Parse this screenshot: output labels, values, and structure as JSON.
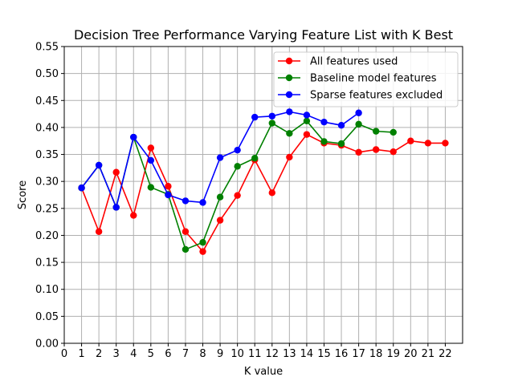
{
  "chart_data": {
    "type": "line",
    "title": "Decision Tree Performance Varying Feature List with K Best",
    "xlabel": "K value",
    "ylabel": "Score",
    "xlim": [
      0,
      23
    ],
    "ylim": [
      0,
      0.55
    ],
    "xticks": [
      0,
      1,
      2,
      3,
      4,
      5,
      6,
      7,
      8,
      9,
      10,
      11,
      12,
      13,
      14,
      15,
      16,
      17,
      18,
      19,
      20,
      21,
      22
    ],
    "yticks": [
      "0.00",
      "0.05",
      "0.10",
      "0.15",
      "0.20",
      "0.25",
      "0.30",
      "0.35",
      "0.40",
      "0.45",
      "0.50",
      "0.55"
    ],
    "grid": true,
    "legend_position": "top-right",
    "series": [
      {
        "name": "All features used",
        "color": "#ff0000",
        "x": [
          1,
          2,
          3,
          4,
          5,
          6,
          7,
          8,
          9,
          10,
          11,
          12,
          13,
          14,
          15,
          16,
          17,
          18,
          19,
          20,
          21,
          22
        ],
        "values": [
          0.288,
          0.207,
          0.317,
          0.237,
          0.362,
          0.291,
          0.207,
          0.17,
          0.228,
          0.274,
          0.34,
          0.279,
          0.345,
          0.387,
          0.371,
          0.367,
          0.354,
          0.359,
          0.355,
          0.375,
          0.371,
          0.371
        ]
      },
      {
        "name": "Baseline model features",
        "color": "#008000",
        "x": [
          1,
          2,
          3,
          4,
          5,
          6,
          7,
          8,
          9,
          10,
          11,
          12,
          13,
          14,
          15,
          16,
          17,
          18,
          19
        ],
        "values": [
          0.288,
          0.33,
          0.252,
          0.382,
          0.289,
          0.276,
          0.174,
          0.187,
          0.271,
          0.328,
          0.343,
          0.408,
          0.389,
          0.412,
          0.374,
          0.37,
          0.406,
          0.393,
          0.391
        ]
      },
      {
        "name": "Sparse features excluded",
        "color": "#0000ff",
        "x": [
          1,
          2,
          3,
          4,
          5,
          6,
          7,
          8,
          9,
          10,
          11,
          12,
          13,
          14,
          15,
          16,
          17
        ],
        "values": [
          0.288,
          0.33,
          0.252,
          0.382,
          0.339,
          0.275,
          0.264,
          0.261,
          0.344,
          0.358,
          0.419,
          0.421,
          0.429,
          0.423,
          0.41,
          0.404,
          0.427
        ]
      }
    ]
  }
}
